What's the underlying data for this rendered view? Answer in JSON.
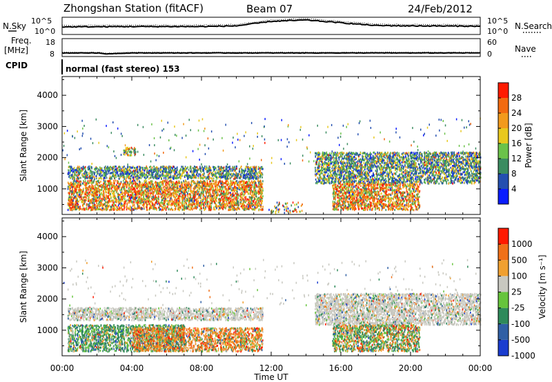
{
  "header": {
    "title": "Zhongshan Station (fitACF)",
    "beam": "Beam 07",
    "date": "24/Feb/2012"
  },
  "nsky_panel": {
    "left_label": "N.Sky",
    "right_label": "N.Search",
    "left_ticks": [
      "10^5",
      "10^0"
    ],
    "right_ticks": [
      "10^5",
      "10^0"
    ]
  },
  "freq_panel": {
    "left_label_1": "Freq.",
    "left_label_2": "[MHz]",
    "right_label": "Nave",
    "left_ticks": [
      "18",
      "8"
    ],
    "right_ticks": [
      "60",
      "0"
    ]
  },
  "cpid_panel": {
    "label": "CPID",
    "mode": "normal (fast stereo) 153"
  },
  "x_axis": {
    "label": "Time UT",
    "ticks": [
      "00:00",
      "04:00",
      "08:00",
      "12:00",
      "16:00",
      "20:00",
      "00:00"
    ]
  },
  "power_panel": {
    "ylabel": "Slant Range [km]",
    "yticks": [
      "1000",
      "2000",
      "3000",
      "4000"
    ],
    "colorbar_label": "Power [dB]",
    "colorbar_ticks": [
      "4",
      "8",
      "12",
      "16",
      "20",
      "24",
      "28"
    ],
    "colors": [
      "#0a1cff",
      "#244fb0",
      "#3b8c60",
      "#6bc24a",
      "#e8c81e",
      "#f29a1c",
      "#f26a10",
      "#ff1a00"
    ]
  },
  "velocity_panel": {
    "ylabel": "Slant Range [km]",
    "yticks": [
      "1000",
      "2000",
      "3000",
      "4000"
    ],
    "colorbar_label": "Velocity  [m s⁻¹]",
    "colorbar_ticks": [
      "1000",
      "500",
      "100",
      "25",
      "-25",
      "-100",
      "-500",
      "-1000"
    ],
    "colors": [
      "#1a3ccf",
      "#2f5fa5",
      "#2e8a5a",
      "#66c43c",
      "#c8c8c0",
      "#f0a030",
      "#f07018",
      "#ff1a00"
    ]
  },
  "chart_data": [
    {
      "type": "heatmap",
      "title": "",
      "xlabel": "Time UT",
      "ylabel": "Slant Range [km]",
      "x_range_hours": [
        0,
        24
      ],
      "ylim": [
        180,
        4600
      ],
      "color_scale_label": "Power [dB]",
      "color_scale_ticks": [
        4,
        8,
        12,
        16,
        20,
        24,
        28
      ],
      "scatter_regions": [
        {
          "t": [
            0.3,
            11.5
          ],
          "r": [
            1350,
            1750
          ],
          "level": "mixed_low_mid"
        },
        {
          "t": [
            0.3,
            11.5
          ],
          "r": [
            350,
            1300
          ],
          "level": "mixed_high"
        },
        {
          "t": [
            14.5,
            24
          ],
          "r": [
            1200,
            2200
          ],
          "level": "mixed_low_mid"
        },
        {
          "t": [
            15.5,
            20.5
          ],
          "r": [
            350,
            1200
          ],
          "level": "mixed_high"
        },
        {
          "t": [
            3.5,
            4.2
          ],
          "r": [
            2100,
            2350
          ],
          "level": "mixed_mid"
        },
        {
          "t": [
            11.8,
            13.8
          ],
          "r": [
            250,
            600
          ],
          "level": "sparse"
        }
      ]
    },
    {
      "type": "heatmap",
      "title": "",
      "xlabel": "Time UT",
      "ylabel": "Slant Range [km]",
      "x_range_hours": [
        0,
        24
      ],
      "ylim": [
        180,
        4600
      ],
      "color_scale_label": "Velocity [m s-1]",
      "color_scale_ticks": [
        1000,
        500,
        100,
        25,
        -25,
        -100,
        -500,
        -1000
      ],
      "scatter_regions": [
        {
          "t": [
            0.3,
            11.5
          ],
          "r": [
            1350,
            1750
          ],
          "level": "near_zero"
        },
        {
          "t": [
            0.3,
            7.0
          ],
          "r": [
            350,
            1200
          ],
          "level": "positive"
        },
        {
          "t": [
            4.0,
            11.5
          ],
          "r": [
            350,
            1100
          ],
          "level": "negative"
        },
        {
          "t": [
            14.5,
            24
          ],
          "r": [
            1200,
            2200
          ],
          "level": "near_zero"
        },
        {
          "t": [
            15.5,
            20.5
          ],
          "r": [
            350,
            1200
          ],
          "level": "mixed"
        }
      ]
    },
    {
      "type": "line",
      "title": "",
      "xlabel": "Time UT",
      "ylabel": "N.Sky",
      "x": [
        0,
        4,
        8,
        10,
        12,
        14,
        16,
        18,
        20,
        24
      ],
      "series": [
        {
          "values": [
            2.2,
            2.3,
            2.3,
            2.5,
            3.8,
            4.2,
            3.4,
            2.6,
            2.5,
            2.4
          ]
        }
      ]
    },
    {
      "type": "line",
      "title": "",
      "xlabel": "Time UT",
      "ylabel": "Freq. [MHz]",
      "x": [
        0,
        2,
        2.5,
        4,
        8,
        12,
        16,
        20,
        24
      ],
      "ylim": [
        8,
        18
      ],
      "series": [
        {
          "values": [
            10.0,
            10.0,
            9.5,
            10.0,
            10.0,
            10.0,
            10.0,
            10.0,
            10.0
          ]
        }
      ]
    }
  ]
}
